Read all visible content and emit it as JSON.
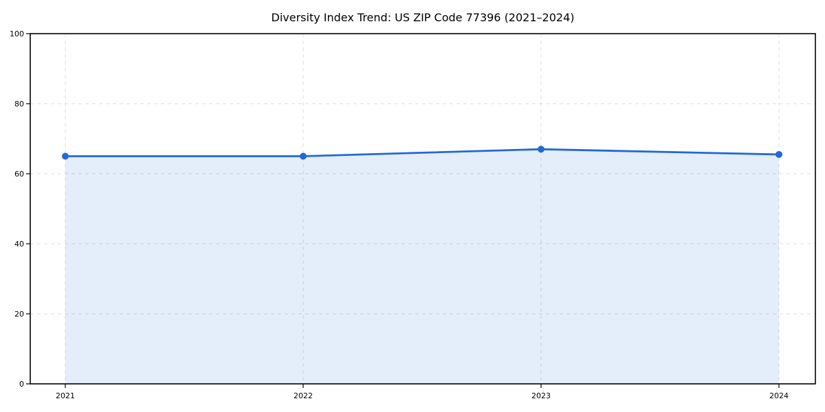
{
  "chart_data": {
    "type": "area",
    "title": "Diversity Index Trend: US ZIP Code 77396 (2021–2024)",
    "x": [
      "2021",
      "2022",
      "2023",
      "2024"
    ],
    "values": [
      65.0,
      65.0,
      67.0,
      65.5
    ],
    "xlabel": "",
    "ylabel": "",
    "ylim": [
      0,
      100
    ],
    "yticks": [
      0,
      20,
      40,
      60,
      80,
      100
    ],
    "xticks": [
      "2021",
      "2022",
      "2023",
      "2024"
    ],
    "grid": true,
    "grid_style": "dashed",
    "legend": "none",
    "marker": "circle",
    "colors": {
      "line": "#2169d8",
      "marker": "#2169d8",
      "fill": "rgba(33,105,216,0.12)",
      "grid": "#dcdcdc",
      "spine": "#000000",
      "text": "#000000",
      "background": "#ffffff"
    }
  }
}
